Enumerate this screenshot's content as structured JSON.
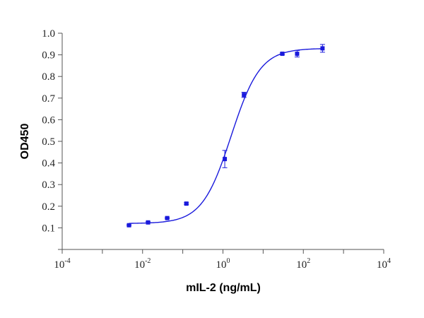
{
  "chart_data": {
    "type": "scatter",
    "xlabel": "mIL-2 (ng/mL)",
    "ylabel": "OD450",
    "x_scale": "log",
    "xlim": [
      0.0001,
      10000
    ],
    "ylim": [
      0.0,
      1.0
    ],
    "x_ticks": [
      {
        "base": "10",
        "exp": "-4",
        "value": 0.0001
      },
      {
        "base": "10",
        "exp": "-2",
        "value": 0.01
      },
      {
        "base": "10",
        "exp": "0",
        "value": 1
      },
      {
        "base": "10",
        "exp": "2",
        "value": 100
      },
      {
        "base": "10",
        "exp": "4",
        "value": 10000
      }
    ],
    "y_ticks": [
      "0.1",
      "0.2",
      "0.3",
      "0.4",
      "0.5",
      "0.6",
      "0.7",
      "0.8",
      "0.9",
      "1.0"
    ],
    "grid": false,
    "points": [
      {
        "x": 0.0046,
        "y": 0.112,
        "err": 0.003
      },
      {
        "x": 0.0137,
        "y": 0.125,
        "err": 0.003
      },
      {
        "x": 0.041,
        "y": 0.145,
        "err": 0.003
      },
      {
        "x": 0.123,
        "y": 0.212,
        "err": 0.004
      },
      {
        "x": 1.11,
        "y": 0.418,
        "err": 0.04
      },
      {
        "x": 3.33,
        "y": 0.715,
        "err": 0.012
      },
      {
        "x": 30.0,
        "y": 0.905,
        "err": 0.004
      },
      {
        "x": 70.0,
        "y": 0.905,
        "err": 0.015
      },
      {
        "x": 300.0,
        "y": 0.93,
        "err": 0.018
      }
    ],
    "fit": {
      "model": "4PL",
      "bottom": 0.12,
      "top": 0.93,
      "ec50": 1.6,
      "hill": 1.2
    },
    "colors": {
      "series": "#1a1adc",
      "axis": "#555555"
    }
  }
}
